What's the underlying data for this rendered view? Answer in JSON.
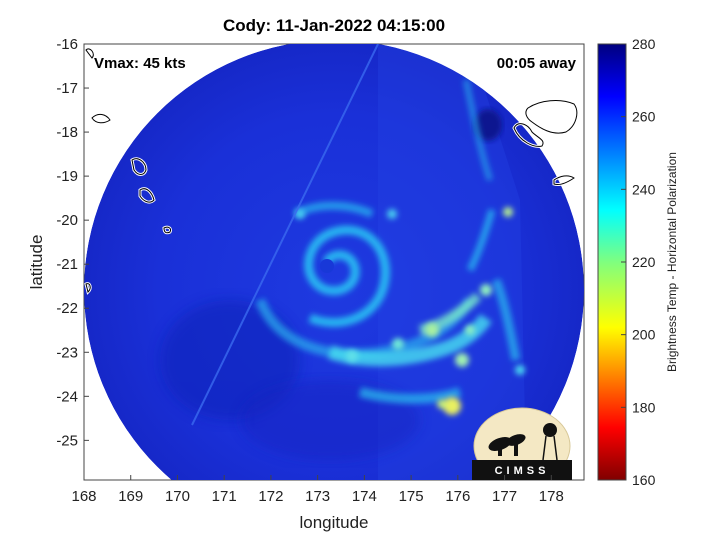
{
  "title": "Cody: 11-Jan-2022 04:15:00",
  "annotations": {
    "vmax": "Vmax: 45 kts",
    "time_away": "00:05 away"
  },
  "axes": {
    "xlabel": "longitude",
    "ylabel": "latitude",
    "x_ticks": [
      "168",
      "169",
      "170",
      "171",
      "172",
      "173",
      "174",
      "175",
      "176",
      "177",
      "178"
    ],
    "y_ticks": [
      "-16",
      "-17",
      "-18",
      "-19",
      "-20",
      "-21",
      "-22",
      "-23",
      "-24",
      "-25"
    ],
    "xlim": [
      168,
      178.7
    ],
    "ylim": [
      -25.9,
      -16
    ]
  },
  "colorbar": {
    "label": "Brightness Temp - Horizontal Polarization",
    "ticks": [
      "280",
      "260",
      "240",
      "220",
      "200",
      "180",
      "160"
    ],
    "range": [
      160,
      280
    ],
    "colormap": "jet"
  },
  "logo": {
    "text": "CIMSS"
  },
  "storm": {
    "center_lon": 173.2,
    "center_lat": -20.9,
    "swath_center_lon": 173.4,
    "swath_center_lat": -21.1
  },
  "colors": {
    "background": "#1a2fd6",
    "cold_band": "#2ad0f0",
    "warm_core": "#0f1fa8",
    "coast": "#ffffff"
  }
}
